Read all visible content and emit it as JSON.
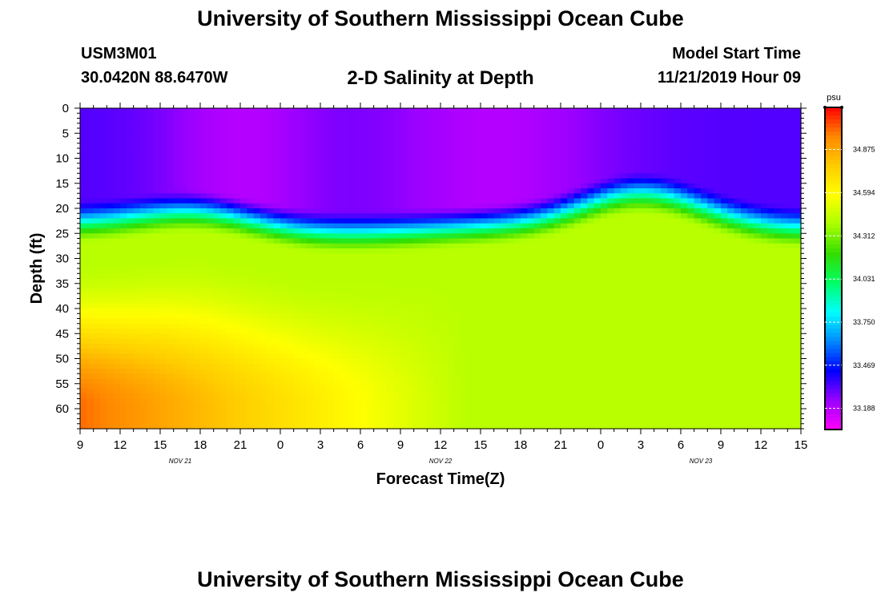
{
  "header": {
    "main_title": "University of Southern Mississippi Ocean Cube",
    "station_id": "USM3M01",
    "station_coords": "30.0420N 88.6470W",
    "subtitle": "2-D Salinity at Depth",
    "model_start_label": "Model Start Time",
    "model_start_value": "11/21/2019 Hour 09"
  },
  "footer": {
    "title": "University of Southern Mississippi Ocean Cube"
  },
  "chart_data": {
    "type": "heatmap",
    "title": "2-D Salinity at Depth",
    "xlabel": "Forecast Time(Z)",
    "ylabel": "Depth (ft)",
    "x_tick_labels": [
      "9",
      "12",
      "15",
      "18",
      "21",
      "0",
      "3",
      "6",
      "9",
      "12",
      "15",
      "18",
      "21",
      "0",
      "3",
      "6",
      "9",
      "12",
      "15"
    ],
    "x_range_hours": [
      0,
      54
    ],
    "date_labels": [
      {
        "label": "NOV  21",
        "hour": 7.5
      },
      {
        "label": "NOV  22",
        "hour": 27
      },
      {
        "label": "NOV  23",
        "hour": 46.5
      }
    ],
    "y_tick_labels": [
      "0",
      "5",
      "10",
      "15",
      "20",
      "25",
      "30",
      "35",
      "40",
      "45",
      "50",
      "55",
      "60"
    ],
    "y_range_ft": [
      0,
      64
    ],
    "colorbar": {
      "unit": "psu",
      "tick_labels": [
        "34.875",
        "34.594",
        "34.312",
        "34.031",
        "33.750",
        "33.469",
        "33.188"
      ],
      "range": [
        33.05,
        35.15
      ],
      "colors": [
        "#ff00ff",
        "#9900ff",
        "#0000ff",
        "#0088ff",
        "#00ffff",
        "#00ff66",
        "#33dd00",
        "#aaff00",
        "#ffff00",
        "#ffcc00",
        "#ff8800",
        "#ff0000"
      ]
    },
    "grid": false
  }
}
